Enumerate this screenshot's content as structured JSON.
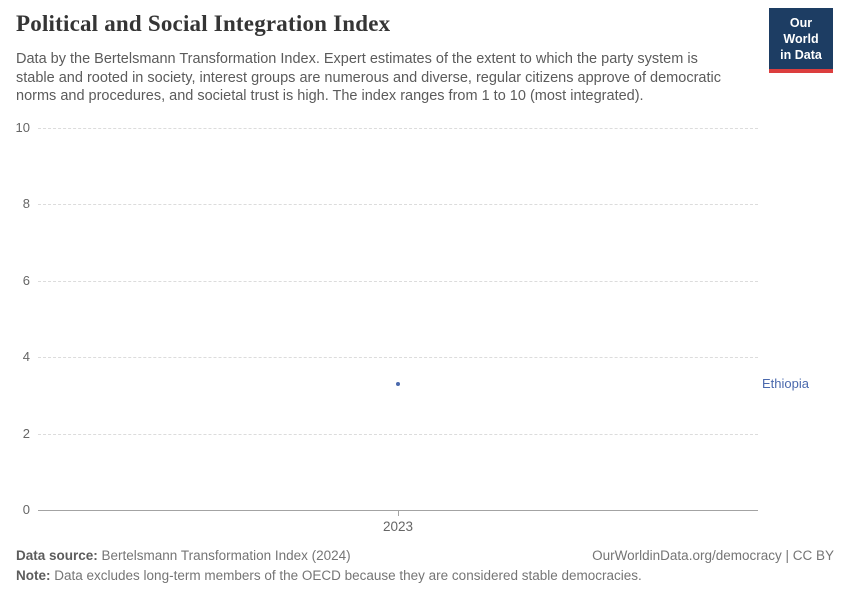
{
  "header": {
    "title": "Political and Social Integration Index",
    "subtitle": "Data by the Bertelsmann Transformation Index. Expert estimates of the extent to which the party system is stable and rooted in society, interest groups are numerous and diverse, regular citizens approve of democratic norms and procedures, and societal trust is high. The index ranges from 1 to 10 (most integrated).",
    "logo": {
      "line1": "Our World",
      "line2": "in Data",
      "bg_color": "#1d3d63",
      "stripe_color": "#dc3e3e"
    }
  },
  "chart_data": {
    "type": "scatter",
    "title": "Political and Social Integration Index",
    "x": [
      2023
    ],
    "series": [
      {
        "name": "Ethiopia",
        "values": [
          3.3
        ],
        "color": "#4a69ad"
      }
    ],
    "xticks": [
      "2023"
    ],
    "yticks": [
      0,
      2,
      4,
      6,
      8,
      10
    ],
    "ylim": [
      0,
      10
    ],
    "xlabel": "",
    "ylabel": "",
    "grid": "horizontal-dashed",
    "legend_position": "right-entity-label"
  },
  "footer": {
    "datasource_label": "Data source:",
    "datasource_value": " Bertelsmann Transformation Index (2024)",
    "credit": "OurWorldinData.org/democracy | CC BY",
    "note_label": "Note:",
    "note_value": " Data excludes long-term members of the OECD because they are considered stable democracies."
  }
}
